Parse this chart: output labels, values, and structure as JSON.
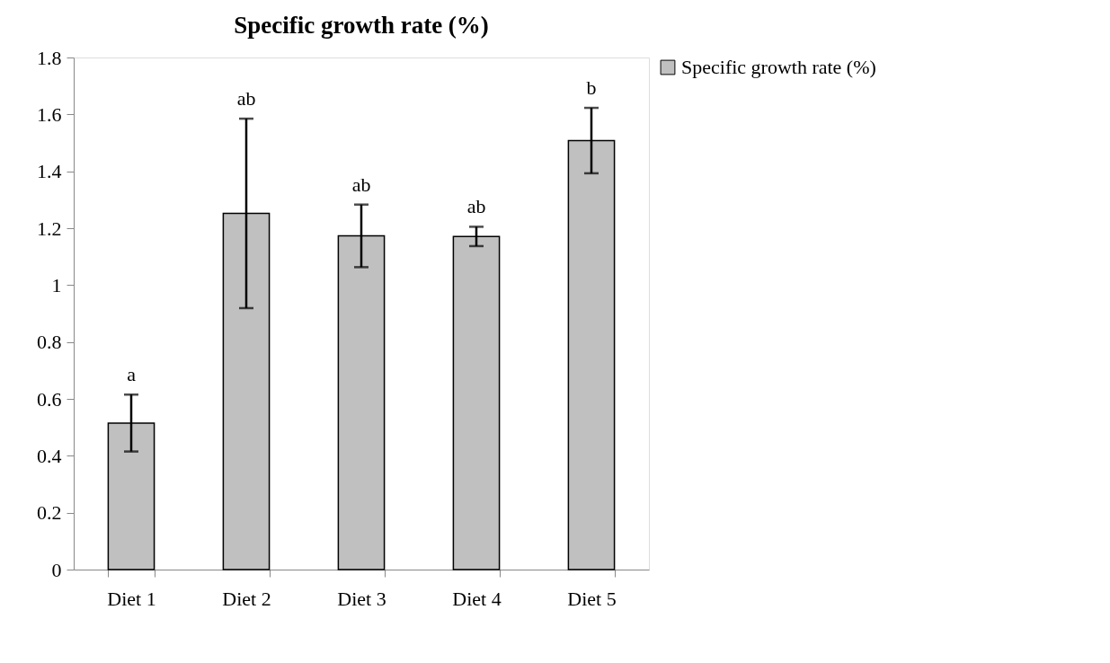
{
  "chart_data": {
    "type": "bar",
    "title": "Specific growth rate (%)",
    "categories": [
      "Diet 1",
      "Diet 2",
      "Diet 3",
      "Diet 4",
      "Diet 5"
    ],
    "series": [
      {
        "name": "Specific growth rate (%)",
        "color": "#c0c0c0",
        "values": [
          0.515,
          1.252,
          1.173,
          1.171,
          1.508
        ],
        "errors": [
          0.1,
          0.333,
          0.11,
          0.034,
          0.115
        ]
      }
    ],
    "ylim": [
      0,
      1.8
    ],
    "yticks": [
      0,
      0.2,
      0.4,
      0.6,
      0.8,
      1,
      1.2,
      1.4,
      1.6,
      1.8
    ],
    "legend": "right",
    "grid": false,
    "annotations": [
      "a",
      "ab",
      "ab",
      "ab",
      "b"
    ]
  }
}
